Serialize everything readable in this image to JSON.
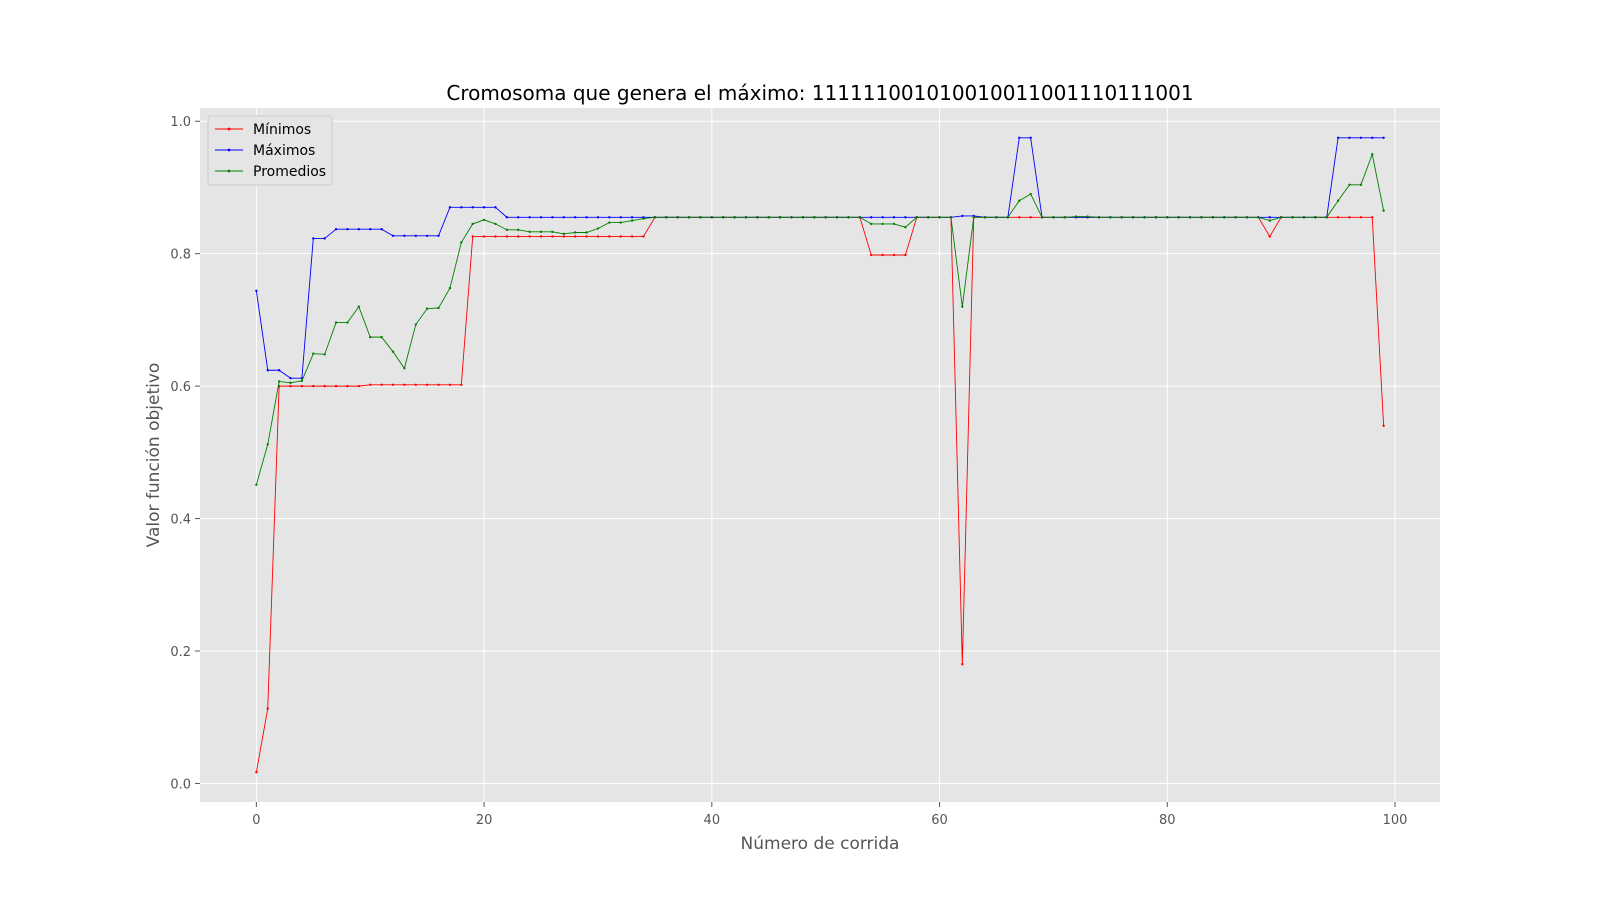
{
  "chart_data": {
    "type": "line",
    "title": "Cromosoma que genera el máximo: 111111001010010011001110111001",
    "xlabel": "Número de corrida",
    "ylabel": "Valor función objetivo",
    "xlim": [
      -4.95,
      103.95
    ],
    "ylim": [
      -0.028,
      1.02
    ],
    "x_ticks": [
      0,
      20,
      40,
      60,
      80,
      100
    ],
    "y_ticks": [
      0.0,
      0.2,
      0.4,
      0.6,
      0.8,
      1.0
    ],
    "x_tick_labels": [
      "0",
      "20",
      "40",
      "60",
      "80",
      "100"
    ],
    "y_tick_labels": [
      "0.0",
      "0.2",
      "0.4",
      "0.6",
      "0.8",
      "1.0"
    ],
    "grid": true,
    "legend_position": "top-left",
    "x_start": 0,
    "series": [
      {
        "name": "Mínimos",
        "color": "#ff0000",
        "values": [
          0.017,
          0.113,
          0.6,
          0.6,
          0.6,
          0.6,
          0.6,
          0.6,
          0.6,
          0.6,
          0.602,
          0.602,
          0.602,
          0.602,
          0.602,
          0.602,
          0.602,
          0.602,
          0.602,
          0.826,
          0.826,
          0.826,
          0.826,
          0.826,
          0.826,
          0.826,
          0.826,
          0.826,
          0.826,
          0.826,
          0.826,
          0.826,
          0.826,
          0.826,
          0.826,
          0.855,
          0.855,
          0.855,
          0.855,
          0.855,
          0.855,
          0.855,
          0.855,
          0.855,
          0.855,
          0.855,
          0.855,
          0.855,
          0.855,
          0.855,
          0.855,
          0.855,
          0.855,
          0.855,
          0.798,
          0.798,
          0.798,
          0.798,
          0.855,
          0.855,
          0.855,
          0.855,
          0.18,
          0.855,
          0.855,
          0.855,
          0.855,
          0.855,
          0.855,
          0.855,
          0.855,
          0.855,
          0.855,
          0.855,
          0.855,
          0.855,
          0.855,
          0.855,
          0.855,
          0.855,
          0.855,
          0.855,
          0.855,
          0.855,
          0.855,
          0.855,
          0.855,
          0.855,
          0.855,
          0.826,
          0.855,
          0.855,
          0.855,
          0.855,
          0.855,
          0.855,
          0.855,
          0.855,
          0.855,
          0.54
        ]
      },
      {
        "name": "Máximos",
        "color": "#0000ff",
        "values": [
          0.744,
          0.624,
          0.624,
          0.612,
          0.612,
          0.823,
          0.823,
          0.837,
          0.837,
          0.837,
          0.837,
          0.837,
          0.827,
          0.827,
          0.827,
          0.827,
          0.827,
          0.87,
          0.87,
          0.87,
          0.87,
          0.87,
          0.855,
          0.855,
          0.855,
          0.855,
          0.855,
          0.855,
          0.855,
          0.855,
          0.855,
          0.855,
          0.855,
          0.855,
          0.855,
          0.855,
          0.855,
          0.855,
          0.855,
          0.855,
          0.855,
          0.855,
          0.855,
          0.855,
          0.855,
          0.855,
          0.855,
          0.855,
          0.855,
          0.855,
          0.855,
          0.855,
          0.855,
          0.855,
          0.855,
          0.855,
          0.855,
          0.855,
          0.855,
          0.855,
          0.855,
          0.855,
          0.857,
          0.857,
          0.855,
          0.855,
          0.855,
          0.975,
          0.975,
          0.855,
          0.855,
          0.855,
          0.855,
          0.855,
          0.855,
          0.855,
          0.855,
          0.855,
          0.855,
          0.855,
          0.855,
          0.855,
          0.855,
          0.855,
          0.855,
          0.855,
          0.855,
          0.855,
          0.855,
          0.855,
          0.855,
          0.855,
          0.855,
          0.855,
          0.855,
          0.975,
          0.975,
          0.975,
          0.975,
          0.975
        ]
      },
      {
        "name": "Promedios",
        "color": "#008000",
        "values": [
          0.451,
          0.512,
          0.607,
          0.605,
          0.608,
          0.649,
          0.648,
          0.696,
          0.696,
          0.72,
          0.674,
          0.674,
          0.652,
          0.627,
          0.693,
          0.717,
          0.718,
          0.748,
          0.817,
          0.845,
          0.851,
          0.845,
          0.836,
          0.836,
          0.833,
          0.833,
          0.833,
          0.83,
          0.832,
          0.832,
          0.838,
          0.847,
          0.847,
          0.85,
          0.853,
          0.855,
          0.855,
          0.855,
          0.855,
          0.855,
          0.855,
          0.855,
          0.855,
          0.855,
          0.855,
          0.855,
          0.855,
          0.855,
          0.855,
          0.855,
          0.855,
          0.855,
          0.855,
          0.855,
          0.845,
          0.845,
          0.845,
          0.84,
          0.855,
          0.855,
          0.855,
          0.855,
          0.72,
          0.855,
          0.855,
          0.855,
          0.855,
          0.88,
          0.89,
          0.855,
          0.855,
          0.855,
          0.856,
          0.856,
          0.855,
          0.855,
          0.855,
          0.855,
          0.855,
          0.855,
          0.855,
          0.855,
          0.855,
          0.855,
          0.855,
          0.855,
          0.855,
          0.855,
          0.855,
          0.85,
          0.855,
          0.855,
          0.855,
          0.855,
          0.855,
          0.88,
          0.904,
          0.904,
          0.95,
          0.865
        ]
      }
    ]
  }
}
